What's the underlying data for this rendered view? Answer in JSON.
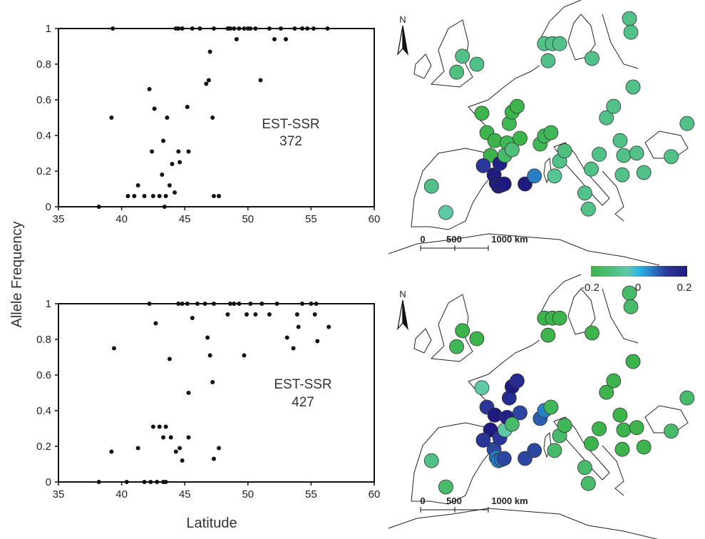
{
  "figure": {
    "ylabel": "Allele Frequency",
    "xlabel": "Latitude"
  },
  "chart_data": [
    {
      "type": "scatter",
      "annotation_line1": "EST-SSR",
      "annotation_line2": "372",
      "xlim": [
        35,
        60
      ],
      "ylim": [
        0,
        1
      ],
      "x_ticks": [
        "35",
        "40",
        "45",
        "50",
        "55",
        "60"
      ],
      "y_ticks": [
        "0",
        "0.2",
        "0.4",
        "0.6",
        "0.8",
        "1"
      ],
      "points": [
        [
          38.2,
          0.0
        ],
        [
          39.3,
          1.0
        ],
        [
          39.2,
          0.5
        ],
        [
          40.5,
          0.06
        ],
        [
          41.0,
          0.06
        ],
        [
          41.3,
          0.12
        ],
        [
          41.8,
          0.06
        ],
        [
          42.2,
          0.66
        ],
        [
          42.4,
          0.31
        ],
        [
          42.6,
          0.55
        ],
        [
          42.5,
          0.06
        ],
        [
          43.0,
          0.06
        ],
        [
          43.2,
          0.18
        ],
        [
          43.3,
          0.37
        ],
        [
          43.4,
          0.0
        ],
        [
          43.5,
          0.06
        ],
        [
          43.6,
          0.5
        ],
        [
          43.8,
          0.12
        ],
        [
          44.0,
          0.24
        ],
        [
          44.2,
          0.08
        ],
        [
          44.5,
          0.31
        ],
        [
          44.6,
          0.25
        ],
        [
          45.2,
          0.56
        ],
        [
          45.3,
          0.31
        ],
        [
          44.3,
          1.0
        ],
        [
          44.5,
          1.0
        ],
        [
          44.8,
          1.0
        ],
        [
          45.6,
          1.0
        ],
        [
          46.2,
          1.0
        ],
        [
          46.7,
          0.69
        ],
        [
          46.9,
          0.71
        ],
        [
          47.0,
          0.87
        ],
        [
          47.2,
          0.5
        ],
        [
          47.3,
          0.06
        ],
        [
          47.7,
          0.06
        ],
        [
          47.3,
          1.0
        ],
        [
          48.4,
          1.0
        ],
        [
          48.6,
          1.0
        ],
        [
          48.9,
          1.0
        ],
        [
          49.1,
          0.94
        ],
        [
          49.3,
          1.0
        ],
        [
          49.7,
          1.0
        ],
        [
          50.0,
          1.0
        ],
        [
          50.2,
          1.0
        ],
        [
          50.6,
          1.0
        ],
        [
          51.0,
          0.71
        ],
        [
          51.7,
          1.0
        ],
        [
          52.1,
          0.94
        ],
        [
          52.6,
          1.0
        ],
        [
          53.0,
          0.94
        ],
        [
          53.7,
          1.0
        ],
        [
          54.3,
          1.0
        ],
        [
          54.7,
          1.0
        ],
        [
          55.2,
          1.0
        ],
        [
          56.3,
          1.0
        ]
      ]
    },
    {
      "type": "scatter",
      "annotation_line1": "EST-SSR",
      "annotation_line2": "427",
      "xlim": [
        35,
        60
      ],
      "ylim": [
        0,
        1
      ],
      "x_ticks": [
        "35",
        "40",
        "45",
        "50",
        "55",
        "60"
      ],
      "y_ticks": [
        "0",
        "0.2",
        "0.4",
        "0.6",
        "0.8",
        "1"
      ],
      "points": [
        [
          38.2,
          0.0
        ],
        [
          39.2,
          0.17
        ],
        [
          39.4,
          0.75
        ],
        [
          40.4,
          0.0
        ],
        [
          41.3,
          0.19
        ],
        [
          41.8,
          0.0
        ],
        [
          42.2,
          1.0
        ],
        [
          42.3,
          0.0
        ],
        [
          42.5,
          0.31
        ],
        [
          42.7,
          0.89
        ],
        [
          42.8,
          0.0
        ],
        [
          43.0,
          0.31
        ],
        [
          43.3,
          0.25
        ],
        [
          43.3,
          0.0
        ],
        [
          43.5,
          0.31
        ],
        [
          43.5,
          0.0
        ],
        [
          43.8,
          0.69
        ],
        [
          43.9,
          0.25
        ],
        [
          44.3,
          0.17
        ],
        [
          44.5,
          1.0
        ],
        [
          44.6,
          0.19
        ],
        [
          44.8,
          1.0
        ],
        [
          44.8,
          0.12
        ],
        [
          45.2,
          1.0
        ],
        [
          45.3,
          0.25
        ],
        [
          45.3,
          0.5
        ],
        [
          45.6,
          0.92
        ],
        [
          46.0,
          1.0
        ],
        [
          46.6,
          1.0
        ],
        [
          46.8,
          0.81
        ],
        [
          47.0,
          0.71
        ],
        [
          47.2,
          0.56
        ],
        [
          47.3,
          0.13
        ],
        [
          47.7,
          0.19
        ],
        [
          47.3,
          1.0
        ],
        [
          48.4,
          0.94
        ],
        [
          48.6,
          1.0
        ],
        [
          48.9,
          1.0
        ],
        [
          49.3,
          1.0
        ],
        [
          49.7,
          0.71
        ],
        [
          49.9,
          0.94
        ],
        [
          50.2,
          1.0
        ],
        [
          50.6,
          0.94
        ],
        [
          51.1,
          1.0
        ],
        [
          51.7,
          0.94
        ],
        [
          52.3,
          1.0
        ],
        [
          53.1,
          0.81
        ],
        [
          53.6,
          0.75
        ],
        [
          53.9,
          0.94
        ],
        [
          54.0,
          0.87
        ],
        [
          54.3,
          1.0
        ],
        [
          55.0,
          1.0
        ],
        [
          55.3,
          0.94
        ],
        [
          55.4,
          1.0
        ],
        [
          55.5,
          0.79
        ],
        [
          56.4,
          0.87
        ]
      ]
    }
  ],
  "maps": [
    {
      "north_label": "N",
      "scale_labels": [
        "0",
        "500",
        "1000 km"
      ],
      "sites": [
        {
          "lon": -7.5,
          "lat": 42.8,
          "value": -0.1
        },
        {
          "lon": -5.5,
          "lat": 40.5,
          "value": -0.05
        },
        {
          "lon": -4.0,
          "lat": 52.8,
          "value": -0.12
        },
        {
          "lon": -3.2,
          "lat": 54.2,
          "value": -0.1
        },
        {
          "lon": -1.2,
          "lat": 53.5,
          "value": -0.1
        },
        {
          "lon": -0.5,
          "lat": 49.2,
          "value": -0.2
        },
        {
          "lon": 0.2,
          "lat": 47.5,
          "value": -0.2
        },
        {
          "lon": 0.7,
          "lat": 45.5,
          "value": -0.2
        },
        {
          "lon": 1.3,
          "lat": 46.8,
          "value": -0.2
        },
        {
          "lon": -0.3,
          "lat": 44.6,
          "value": 0.12
        },
        {
          "lon": 1.2,
          "lat": 43.8,
          "value": 0.2
        },
        {
          "lon": 1.5,
          "lat": 43.1,
          "value": 0.2
        },
        {
          "lon": 1.8,
          "lat": 42.8,
          "value": 0.2
        },
        {
          "lon": 2.2,
          "lat": 42.9,
          "value": 0.2
        },
        {
          "lon": 2.6,
          "lat": 43.0,
          "value": 0.2
        },
        {
          "lon": 2.0,
          "lat": 44.8,
          "value": 0.18
        },
        {
          "lon": 2.7,
          "lat": 45.5,
          "value": -0.15
        },
        {
          "lon": 3.0,
          "lat": 46.6,
          "value": -0.18
        },
        {
          "lon": 3.3,
          "lat": 48.3,
          "value": -0.18
        },
        {
          "lon": 3.7,
          "lat": 49.3,
          "value": -0.2
        },
        {
          "lon": 4.4,
          "lat": 49.8,
          "value": -0.2
        },
        {
          "lon": 4.8,
          "lat": 47.0,
          "value": -0.2
        },
        {
          "lon": 3.7,
          "lat": 46.0,
          "value": -0.12
        },
        {
          "lon": 5.5,
          "lat": 43.0,
          "value": 0.2
        },
        {
          "lon": 6.8,
          "lat": 43.7,
          "value": 0.05
        },
        {
          "lon": 7.6,
          "lat": 46.5,
          "value": -0.18
        },
        {
          "lon": 8.2,
          "lat": 47.2,
          "value": -0.18
        },
        {
          "lon": 9.1,
          "lat": 47.5,
          "value": -0.18
        },
        {
          "lon": 9.6,
          "lat": 43.7,
          "value": -0.08
        },
        {
          "lon": 10.3,
          "lat": 45.0,
          "value": -0.1
        },
        {
          "lon": 11.0,
          "lat": 45.9,
          "value": -0.12
        },
        {
          "lon": 8.2,
          "lat": 55.3,
          "value": -0.1
        },
        {
          "lon": 8.7,
          "lat": 53.8,
          "value": -0.1
        },
        {
          "lon": 9.3,
          "lat": 55.3,
          "value": -0.1
        },
        {
          "lon": 10.3,
          "lat": 55.3,
          "value": -0.1
        },
        {
          "lon": 14.8,
          "lat": 54.0,
          "value": -0.1
        },
        {
          "lon": 13.8,
          "lat": 42.2,
          "value": -0.1
        },
        {
          "lon": 14.3,
          "lat": 40.8,
          "value": -0.1
        },
        {
          "lon": 14.7,
          "lat": 44.3,
          "value": -0.1
        },
        {
          "lon": 15.8,
          "lat": 45.6,
          "value": -0.1
        },
        {
          "lon": 16.8,
          "lat": 48.8,
          "value": -0.1
        },
        {
          "lon": 17.8,
          "lat": 49.8,
          "value": -0.1
        },
        {
          "lon": 18.7,
          "lat": 46.8,
          "value": -0.1
        },
        {
          "lon": 19.2,
          "lat": 45.5,
          "value": -0.1
        },
        {
          "lon": 19.0,
          "lat": 43.8,
          "value": -0.1
        },
        {
          "lon": 20.0,
          "lat": 57.5,
          "value": -0.1
        },
        {
          "lon": 20.2,
          "lat": 56.3,
          "value": -0.1
        },
        {
          "lon": 20.5,
          "lat": 51.5,
          "value": -0.1
        },
        {
          "lon": 21.0,
          "lat": 45.7,
          "value": -0.1
        },
        {
          "lon": 22.0,
          "lat": 44.0,
          "value": -0.1
        },
        {
          "lon": 25.8,
          "lat": 45.4,
          "value": -0.1
        },
        {
          "lon": 28.0,
          "lat": 48.3,
          "value": -0.1
        }
      ]
    },
    {
      "north_label": "N",
      "scale_labels": [
        "0",
        "500",
        "1000 km"
      ],
      "sites": [
        {
          "lon": -7.5,
          "lat": 42.8,
          "value": -0.1
        },
        {
          "lon": -5.5,
          "lat": 40.5,
          "value": -0.15
        },
        {
          "lon": -4.0,
          "lat": 52.8,
          "value": -0.18
        },
        {
          "lon": -3.2,
          "lat": 54.2,
          "value": -0.2
        },
        {
          "lon": -1.2,
          "lat": 53.5,
          "value": -0.2
        },
        {
          "lon": -0.5,
          "lat": 49.2,
          "value": -0.05
        },
        {
          "lon": 0.2,
          "lat": 47.5,
          "value": 0.12
        },
        {
          "lon": 0.7,
          "lat": 45.5,
          "value": 0.2
        },
        {
          "lon": 1.3,
          "lat": 46.8,
          "value": 0.2
        },
        {
          "lon": -0.3,
          "lat": 44.6,
          "value": 0.12
        },
        {
          "lon": 1.2,
          "lat": 43.8,
          "value": 0.1
        },
        {
          "lon": 1.5,
          "lat": 43.1,
          "value": 0.06
        },
        {
          "lon": 1.8,
          "lat": 42.8,
          "value": 0.05
        },
        {
          "lon": 2.2,
          "lat": 42.9,
          "value": 0.06
        },
        {
          "lon": 2.6,
          "lat": 43.0,
          "value": 0.1
        },
        {
          "lon": 2.0,
          "lat": 44.8,
          "value": 0.12
        },
        {
          "lon": 2.7,
          "lat": 45.5,
          "value": -0.05
        },
        {
          "lon": 3.0,
          "lat": 46.6,
          "value": 0.18
        },
        {
          "lon": 3.3,
          "lat": 48.3,
          "value": 0.15
        },
        {
          "lon": 3.7,
          "lat": 49.3,
          "value": 0.2
        },
        {
          "lon": 4.4,
          "lat": 49.8,
          "value": 0.15
        },
        {
          "lon": 4.8,
          "lat": 47.0,
          "value": 0.1
        },
        {
          "lon": 3.7,
          "lat": 46.0,
          "value": -0.15
        },
        {
          "lon": 5.5,
          "lat": 43.0,
          "value": 0.1
        },
        {
          "lon": 6.8,
          "lat": 43.7,
          "value": 0.1
        },
        {
          "lon": 7.6,
          "lat": 46.5,
          "value": 0.08
        },
        {
          "lon": 8.2,
          "lat": 47.2,
          "value": 0.05
        },
        {
          "lon": 9.1,
          "lat": 47.5,
          "value": -0.18
        },
        {
          "lon": 9.6,
          "lat": 43.7,
          "value": -0.15
        },
        {
          "lon": 10.3,
          "lat": 45.0,
          "value": -0.15
        },
        {
          "lon": 11.0,
          "lat": 45.9,
          "value": -0.18
        },
        {
          "lon": 8.2,
          "lat": 55.3,
          "value": -0.2
        },
        {
          "lon": 8.7,
          "lat": 53.8,
          "value": -0.2
        },
        {
          "lon": 9.3,
          "lat": 55.3,
          "value": -0.2
        },
        {
          "lon": 10.3,
          "lat": 55.3,
          "value": -0.2
        },
        {
          "lon": 14.8,
          "lat": 54.0,
          "value": -0.2
        },
        {
          "lon": 13.8,
          "lat": 42.2,
          "value": -0.15
        },
        {
          "lon": 14.3,
          "lat": 40.8,
          "value": -0.15
        },
        {
          "lon": 14.7,
          "lat": 44.3,
          "value": -0.2
        },
        {
          "lon": 15.8,
          "lat": 45.6,
          "value": -0.2
        },
        {
          "lon": 16.8,
          "lat": 48.8,
          "value": -0.2
        },
        {
          "lon": 17.8,
          "lat": 49.8,
          "value": -0.2
        },
        {
          "lon": 18.7,
          "lat": 46.8,
          "value": -0.2
        },
        {
          "lon": 19.2,
          "lat": 45.5,
          "value": -0.2
        },
        {
          "lon": 19.0,
          "lat": 43.8,
          "value": -0.2
        },
        {
          "lon": 20.0,
          "lat": 57.5,
          "value": -0.15
        },
        {
          "lon": 20.2,
          "lat": 56.3,
          "value": -0.15
        },
        {
          "lon": 20.5,
          "lat": 51.5,
          "value": -0.2
        },
        {
          "lon": 21.0,
          "lat": 45.7,
          "value": -0.2
        },
        {
          "lon": 22.0,
          "lat": 44.0,
          "value": -0.2
        },
        {
          "lon": 25.8,
          "lat": 45.4,
          "value": -0.15
        },
        {
          "lon": 28.0,
          "lat": 48.3,
          "value": -0.15
        }
      ]
    }
  ],
  "colorbar": {
    "tick_labels": [
      "-0.2",
      "0",
      "0.2"
    ],
    "range": [
      -0.2,
      0.2
    ],
    "colors": [
      "#3cb44b",
      "#5ec8a8",
      "#29b6e8",
      "#2b3a9a",
      "#1f1a80"
    ]
  }
}
